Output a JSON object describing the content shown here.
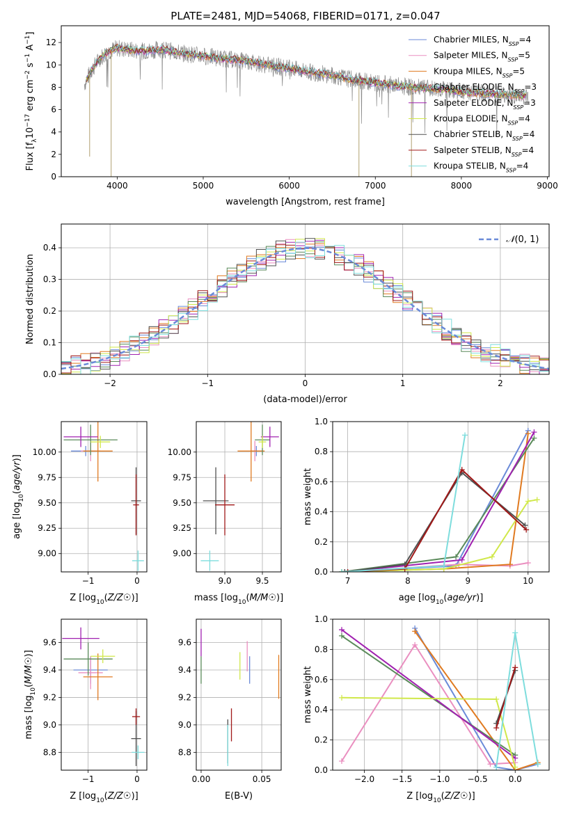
{
  "figure": {
    "title": "PLATE=2481, MJD=54068, FIBERID=0171, z=0.047"
  },
  "model_colors": [
    "#6a8ad8",
    "#ea8fc0",
    "#e07a20",
    "#5a8a5a",
    "#a020b0",
    "#d0e84a",
    "#505050",
    "#a01818",
    "#7edddd"
  ],
  "chart_data": [
    {
      "id": "spectrum",
      "type": "line",
      "title": "PLATE=2481, MJD=54068, FIBERID=0171, z=0.047",
      "xlabel": "wavelength [Angstrom, rest frame]",
      "ylabel": "Flux [f_λ 10^-17 erg cm^-2 s^-1 A^-1]",
      "xlim": [
        3350,
        9020
      ],
      "ylim": [
        0,
        13.5
      ],
      "xticks": [
        4000,
        5000,
        6000,
        7000,
        8000,
        9000
      ],
      "yticks": [
        0,
        2,
        4,
        6,
        8,
        10,
        12
      ],
      "grid": false,
      "legend_position": "right",
      "legend": [
        {
          "model": "Chabrier MILES",
          "nssp": "4"
        },
        {
          "model": "Salpeter MILES",
          "nssp": "5"
        },
        {
          "model": "Kroupa MILES",
          "nssp": "5"
        },
        {
          "model": "Chabrier ELODIE",
          "nssp": "3"
        },
        {
          "model": "Salpeter ELODIE",
          "nssp": "3"
        },
        {
          "model": "Kroupa ELODIE",
          "nssp": "4"
        },
        {
          "model": "Chabrier STELIB",
          "nssp": "4"
        },
        {
          "model": "Salpeter STELIB",
          "nssp": "4"
        },
        {
          "model": "Kroupa STELIB",
          "nssp": "4"
        }
      ],
      "data_envelope": {
        "x": [
          3600,
          3700,
          3800,
          3900,
          4000,
          4100,
          4200,
          4300,
          4400,
          4500,
          4600,
          4700,
          4800,
          4900,
          5000,
          5200,
          5400,
          5600,
          5800,
          6000,
          6200,
          6400,
          6600,
          6800,
          7000,
          7200,
          7400,
          7600,
          7800,
          8000,
          8200,
          8400,
          8600,
          8800
        ],
        "y": [
          8.0,
          9.5,
          10.6,
          11.2,
          11.5,
          11.4,
          11.3,
          11.2,
          11.3,
          11.4,
          11.3,
          11.1,
          11.0,
          10.9,
          10.8,
          10.6,
          10.4,
          10.2,
          9.9,
          9.7,
          9.4,
          9.2,
          8.9,
          8.6,
          8.4,
          8.2,
          8.0,
          7.9,
          7.8,
          7.6,
          7.5,
          7.4,
          7.3,
          7.2
        ]
      }
    },
    {
      "id": "residuals",
      "type": "histogram",
      "xlabel": "(data-model)/error",
      "ylabel": "Normed distribution",
      "xlim": [
        -2.5,
        2.5
      ],
      "ylim": [
        0,
        0.475
      ],
      "xticks": [
        -2,
        -1,
        0,
        1,
        2
      ],
      "yticks": [
        0.0,
        0.1,
        0.2,
        0.3,
        0.4
      ],
      "grid": true,
      "legend_position": "top-right",
      "reference_curve": {
        "label": "N(0,1)",
        "mean": 0,
        "sigma": 1
      },
      "bin_edges_range": [
        -2.5,
        2.5
      ],
      "bin_width": 0.1,
      "histograms": [
        [
          0.03,
          0.035,
          0.04,
          0.035,
          0.045,
          0.04,
          0.05,
          0.055,
          0.06,
          0.065,
          0.07,
          0.08,
          0.1,
          0.12,
          0.14,
          0.17,
          0.16,
          0.18,
          0.2,
          0.21,
          0.24,
          0.26,
          0.27,
          0.3,
          0.31,
          0.33,
          0.34,
          0.37,
          0.38,
          0.41,
          0.39,
          0.42,
          0.4,
          0.39,
          0.42,
          0.38,
          0.37,
          0.36,
          0.34,
          0.33,
          0.3,
          0.29,
          0.28,
          0.26,
          0.23,
          0.2,
          0.18,
          0.19,
          0.16,
          0.13
        ]
      ]
    },
    {
      "id": "age-vs-Z",
      "type": "errorbar",
      "xlabel": "Z [log10(Z/Z☉)]",
      "ylabel": "age  [log10(age/yr)]",
      "xlim": [
        -1.55,
        0.2
      ],
      "ylim": [
        8.82,
        10.3
      ],
      "xticks": [
        -1,
        0
      ],
      "yticks": [
        9.0,
        9.25,
        9.5,
        9.75,
        10.0
      ],
      "grid": true,
      "points": [
        {
          "series": 0,
          "x": -1.05,
          "y": 10.01,
          "xerr": 0.3,
          "yerr": 0.05
        },
        {
          "series": 1,
          "x": -0.95,
          "y": 10.01,
          "xerr": 0.2,
          "yerr": 0.1
        },
        {
          "series": 2,
          "x": -0.8,
          "y": 10.01,
          "xerr": 0.3,
          "yerr": 0.3
        },
        {
          "series": 3,
          "x": -0.95,
          "y": 10.12,
          "xerr": 0.55,
          "yerr": 0.15
        },
        {
          "series": 4,
          "x": -1.15,
          "y": 10.15,
          "xerr": 0.35,
          "yerr": 0.1
        },
        {
          "series": 5,
          "x": -0.75,
          "y": 10.1,
          "xerr": 0.2,
          "yerr": 0.06
        },
        {
          "series": 6,
          "x": -0.02,
          "y": 9.52,
          "xerr": 0.1,
          "yerr": 0.33
        },
        {
          "series": 7,
          "x": -0.02,
          "y": 9.48,
          "xerr": 0.06,
          "yerr": 0.3
        },
        {
          "series": 8,
          "x": 0.02,
          "y": 8.93,
          "xerr": 0.12,
          "yerr": 0.1
        }
      ]
    },
    {
      "id": "age-vs-mass",
      "type": "errorbar",
      "xlabel": "mass [log10(M/M☉)]",
      "ylabel": "",
      "xlim": [
        8.62,
        9.75
      ],
      "ylim": [
        8.82,
        10.3
      ],
      "xticks": [
        9.0,
        9.5
      ],
      "yticks": [
        9.0,
        9.25,
        9.5,
        9.75,
        10.0
      ],
      "grid": true,
      "points": [
        {
          "series": 0,
          "x": 9.42,
          "y": 10.01,
          "xerr": 0.08,
          "yerr": 0.05
        },
        {
          "series": 1,
          "x": 9.4,
          "y": 10.01,
          "xerr": 0.06,
          "yerr": 0.1
        },
        {
          "series": 2,
          "x": 9.35,
          "y": 10.01,
          "xerr": 0.18,
          "yerr": 0.3
        },
        {
          "series": 3,
          "x": 9.5,
          "y": 10.12,
          "xerr": 0.1,
          "yerr": 0.15
        },
        {
          "series": 4,
          "x": 9.6,
          "y": 10.15,
          "xerr": 0.12,
          "yerr": 0.1
        },
        {
          "series": 5,
          "x": 9.5,
          "y": 10.1,
          "xerr": 0.05,
          "yerr": 0.06
        },
        {
          "series": 6,
          "x": 8.88,
          "y": 9.52,
          "xerr": 0.17,
          "yerr": 0.33
        },
        {
          "series": 7,
          "x": 9.0,
          "y": 9.48,
          "xerr": 0.13,
          "yerr": 0.3
        },
        {
          "series": 8,
          "x": 8.8,
          "y": 8.93,
          "xerr": 0.12,
          "yerr": 0.1
        }
      ]
    },
    {
      "id": "weight-vs-age",
      "type": "line",
      "xlabel": "age  [log10(age/yr)]",
      "ylabel": "mass weight",
      "xlim": [
        6.75,
        10.35
      ],
      "ylim": [
        0,
        1.0
      ],
      "xticks": [
        7,
        8,
        9,
        10
      ],
      "yticks": [
        0.0,
        0.2,
        0.4,
        0.6,
        0.8,
        1.0
      ],
      "grid": true,
      "series": [
        {
          "series": 0,
          "points": [
            [
              6.9,
              0.0
            ],
            [
              8.8,
              0.04
            ],
            [
              10.0,
              0.94
            ]
          ]
        },
        {
          "series": 1,
          "points": [
            [
              7.0,
              0.0
            ],
            [
              8.85,
              0.05
            ],
            [
              9.7,
              0.04
            ],
            [
              10.0,
              0.06
            ]
          ]
        },
        {
          "series": 2,
          "points": [
            [
              6.95,
              0.0
            ],
            [
              8.6,
              0.02
            ],
            [
              9.7,
              0.05
            ],
            [
              10.0,
              0.92
            ]
          ]
        },
        {
          "series": 3,
          "points": [
            [
              6.9,
              0.0
            ],
            [
              8.8,
              0.1
            ],
            [
              10.1,
              0.89
            ]
          ]
        },
        {
          "series": 4,
          "points": [
            [
              6.95,
              0.0
            ],
            [
              8.9,
              0.08
            ],
            [
              10.1,
              0.93
            ]
          ]
        },
        {
          "series": 5,
          "points": [
            [
              6.9,
              0.0
            ],
            [
              8.6,
              0.02
            ],
            [
              9.4,
              0.1
            ],
            [
              10.0,
              0.47
            ],
            [
              10.15,
              0.48
            ]
          ]
        },
        {
          "series": 6,
          "points": [
            [
              6.95,
              0.0
            ],
            [
              7.95,
              0.05
            ],
            [
              8.9,
              0.66
            ],
            [
              9.95,
              0.31
            ]
          ]
        },
        {
          "series": 7,
          "points": [
            [
              7.0,
              0.0
            ],
            [
              7.95,
              0.02
            ],
            [
              8.9,
              0.68
            ],
            [
              9.97,
              0.28
            ]
          ]
        },
        {
          "series": 8,
          "points": [
            [
              6.9,
              0.0
            ],
            [
              8.6,
              0.04
            ],
            [
              8.95,
              0.91
            ]
          ]
        }
      ]
    },
    {
      "id": "mass-vs-Z",
      "type": "errorbar",
      "xlabel": "Z [log10(Z/Z☉)]",
      "ylabel": "mass [log10(M/M☉)]",
      "xlim": [
        -1.55,
        0.2
      ],
      "ylim": [
        8.67,
        9.77
      ],
      "xticks": [
        -1,
        0
      ],
      "yticks": [
        8.8,
        9.0,
        9.2,
        9.4,
        9.6
      ],
      "grid": true,
      "points": [
        {
          "series": 0,
          "x": -0.95,
          "y": 9.4,
          "xerr": 0.35,
          "yerr": 0.1
        },
        {
          "series": 1,
          "x": -0.95,
          "y": 9.38,
          "xerr": 0.25,
          "yerr": 0.12
        },
        {
          "series": 2,
          "x": -0.8,
          "y": 9.35,
          "xerr": 0.3,
          "yerr": 0.17
        },
        {
          "series": 3,
          "x": -1.0,
          "y": 9.48,
          "xerr": 0.5,
          "yerr": 0.12
        },
        {
          "series": 4,
          "x": -1.15,
          "y": 9.63,
          "xerr": 0.38,
          "yerr": 0.08
        },
        {
          "series": 5,
          "x": -0.7,
          "y": 9.5,
          "xerr": 0.25,
          "yerr": 0.05
        },
        {
          "series": 6,
          "x": -0.02,
          "y": 8.9,
          "xerr": 0.1,
          "yerr": 0.2
        },
        {
          "series": 7,
          "x": -0.02,
          "y": 9.06,
          "xerr": 0.08,
          "yerr": 0.06
        },
        {
          "series": 8,
          "x": 0.02,
          "y": 8.8,
          "xerr": 0.13,
          "yerr": 0.05
        }
      ]
    },
    {
      "id": "mass-vs-ebv",
      "type": "errorbar",
      "xlabel": "E(B-V)",
      "ylabel": "",
      "xlim": [
        -0.004,
        0.066
      ],
      "ylim": [
        8.67,
        9.77
      ],
      "xticks": [
        0.0,
        0.05
      ],
      "yticks": [
        8.8,
        9.0,
        9.2,
        9.4,
        9.6
      ],
      "grid": true,
      "points": [
        {
          "series": 0,
          "x": 0.04,
          "y": 9.4,
          "xerr": 0,
          "yerr": 0.1
        },
        {
          "series": 1,
          "x": 0.038,
          "y": 9.5,
          "xerr": 0,
          "yerr": 0.11
        },
        {
          "series": 2,
          "x": 0.064,
          "y": 9.35,
          "xerr": 0,
          "yerr": 0.16
        },
        {
          "series": 3,
          "x": 0.0,
          "y": 9.4,
          "xerr": 0,
          "yerr": 0.1
        },
        {
          "series": 4,
          "x": 0.0,
          "y": 9.6,
          "xerr": 0,
          "yerr": 0.1
        },
        {
          "series": 5,
          "x": 0.032,
          "y": 9.43,
          "xerr": 0,
          "yerr": 0.1
        },
        {
          "series": 6,
          "x": 0.022,
          "y": 8.88,
          "xerr": 0,
          "yerr": 0.16
        },
        {
          "series": 7,
          "x": 0.025,
          "y": 9.0,
          "xerr": 0,
          "yerr": 0.12
        },
        {
          "series": 8,
          "x": 0.022,
          "y": 8.85,
          "xerr": 0,
          "yerr": 0.15
        }
      ]
    },
    {
      "id": "weight-vs-Z",
      "type": "line",
      "xlabel": "Z [log10(Z/Z☉)]",
      "ylabel": "mass weight",
      "xlim": [
        -2.42,
        0.45
      ],
      "ylim": [
        0,
        1.0
      ],
      "xticks": [
        -2.0,
        -1.5,
        -1.0,
        -0.5,
        0.0
      ],
      "yticks": [
        0.0,
        0.2,
        0.4,
        0.6,
        0.8,
        1.0
      ],
      "grid": true,
      "series": [
        {
          "series": 0,
          "points": [
            [
              -1.33,
              0.94
            ],
            [
              -0.25,
              0.02
            ],
            [
              0.0,
              0.0
            ],
            [
              0.3,
              0.04
            ]
          ]
        },
        {
          "series": 1,
          "points": [
            [
              -2.3,
              0.06
            ],
            [
              -1.33,
              0.83
            ],
            [
              -0.33,
              0.04
            ],
            [
              0.0,
              0.05
            ]
          ]
        },
        {
          "series": 2,
          "points": [
            [
              -1.33,
              0.92
            ],
            [
              0.0,
              0.0
            ],
            [
              0.3,
              0.05
            ]
          ]
        },
        {
          "series": 3,
          "points": [
            [
              -2.3,
              0.89
            ],
            [
              0.0,
              0.1
            ]
          ]
        },
        {
          "series": 4,
          "points": [
            [
              -2.3,
              0.93
            ],
            [
              0.0,
              0.08
            ]
          ]
        },
        {
          "series": 5,
          "points": [
            [
              -2.3,
              0.48
            ],
            [
              -0.25,
              0.47
            ],
            [
              0.0,
              0.02
            ]
          ]
        },
        {
          "series": 6,
          "points": [
            [
              -0.25,
              0.31
            ],
            [
              0.0,
              0.66
            ]
          ]
        },
        {
          "series": 7,
          "points": [
            [
              -0.25,
              0.28
            ],
            [
              0.0,
              0.68
            ]
          ]
        },
        {
          "series": 8,
          "points": [
            [
              -0.25,
              0.02
            ],
            [
              0.0,
              0.91
            ],
            [
              0.3,
              0.04
            ]
          ]
        }
      ]
    }
  ]
}
